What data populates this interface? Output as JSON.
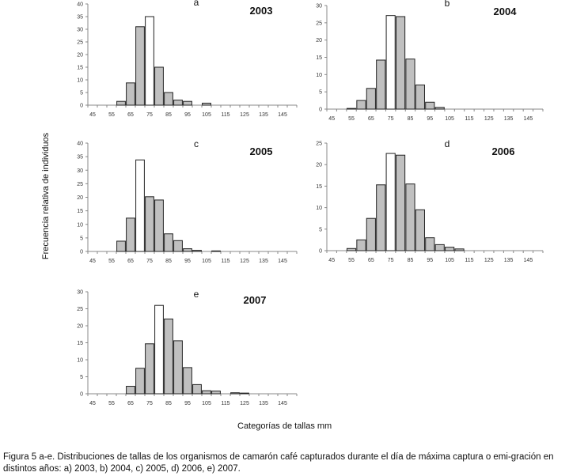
{
  "y_axis_label": "Frecuencia relativa de individuos",
  "x_axis_label": "Categorías de tallas mm",
  "caption": "Figura 5 a-e. Distribuciones de tallas de los organismos de camarón café capturados durante el día de máxima captura o emi-gración en distintos años: a) 2003, b) 2004, c) 2005, d) 2006, e) 2007.",
  "colors": {
    "bar_fill": "#c0c0c0",
    "highlight_fill": "#ffffff",
    "bar_stroke": "#222222",
    "axis": "#888888"
  },
  "chart_data": [
    {
      "type": "bar",
      "panel": "a",
      "title": "2003",
      "categories": [
        "45",
        "50",
        "55",
        "60",
        "65",
        "70",
        "75",
        "80",
        "85",
        "90",
        "95",
        "100",
        "105",
        "110",
        "115",
        "120",
        "125",
        "130",
        "135",
        "140",
        "145",
        "150"
      ],
      "tick_labels": [
        "45",
        "55",
        "65",
        "75",
        "85",
        "95",
        "105",
        "115",
        "125",
        "135",
        "145"
      ],
      "values": [
        0,
        0,
        0,
        1.5,
        8.8,
        31,
        35,
        15,
        5,
        2,
        1.5,
        0,
        0.8,
        0,
        0,
        0,
        0,
        0,
        0,
        0,
        0,
        0
      ],
      "highlight_index": 6,
      "ylim": [
        0,
        40
      ],
      "yticks": [
        0,
        5,
        10,
        15,
        20,
        25,
        30,
        35,
        40
      ]
    },
    {
      "type": "bar",
      "panel": "b",
      "title": "2004",
      "categories": [
        "45",
        "50",
        "55",
        "60",
        "65",
        "70",
        "75",
        "80",
        "85",
        "90",
        "95",
        "100",
        "105",
        "110",
        "115",
        "120",
        "125",
        "130",
        "135",
        "140",
        "145",
        "150"
      ],
      "tick_labels": [
        "45",
        "55",
        "65",
        "75",
        "85",
        "95",
        "105",
        "115",
        "125",
        "135",
        "145"
      ],
      "values": [
        0,
        0,
        0.2,
        2.5,
        6,
        14.2,
        27.1,
        26.8,
        14.5,
        7,
        2,
        0.5,
        0,
        0,
        0,
        0,
        0,
        0,
        0,
        0,
        0,
        0
      ],
      "highlight_index": 6,
      "ylim": [
        0,
        30
      ],
      "yticks": [
        0,
        5,
        10,
        15,
        20,
        25,
        30
      ]
    },
    {
      "type": "bar",
      "panel": "c",
      "title": "2005",
      "categories": [
        "45",
        "50",
        "55",
        "60",
        "65",
        "70",
        "75",
        "80",
        "85",
        "90",
        "95",
        "100",
        "105",
        "110",
        "115",
        "120",
        "125",
        "130",
        "135",
        "140",
        "145",
        "150"
      ],
      "tick_labels": [
        "45",
        "55",
        "65",
        "75",
        "85",
        "95",
        "105",
        "115",
        "125",
        "135",
        "145"
      ],
      "values": [
        0,
        0,
        0,
        3.8,
        12.3,
        33.8,
        20.2,
        19,
        6.5,
        4,
        1,
        0.4,
        0,
        0.2,
        0,
        0,
        0,
        0,
        0,
        0,
        0,
        0
      ],
      "highlight_index": 5,
      "ylim": [
        0,
        40
      ],
      "yticks": [
        0,
        5,
        10,
        15,
        20,
        25,
        30,
        35,
        40
      ]
    },
    {
      "type": "bar",
      "panel": "d",
      "title": "2006",
      "categories": [
        "45",
        "50",
        "55",
        "60",
        "65",
        "70",
        "75",
        "80",
        "85",
        "90",
        "95",
        "100",
        "105",
        "110",
        "115",
        "120",
        "125",
        "130",
        "135",
        "140",
        "145",
        "150"
      ],
      "tick_labels": [
        "45",
        "55",
        "65",
        "75",
        "85",
        "95",
        "105",
        "115",
        "125",
        "135",
        "145"
      ],
      "values": [
        0,
        0,
        0.5,
        2.5,
        7.5,
        15.3,
        22.6,
        22.2,
        15.5,
        9.5,
        3,
        1.4,
        0.8,
        0.4,
        0,
        0,
        0,
        0,
        0,
        0,
        0,
        0
      ],
      "highlight_index": 6,
      "ylim": [
        0,
        25
      ],
      "yticks": [
        0,
        5,
        10,
        15,
        20,
        25
      ]
    },
    {
      "type": "bar",
      "panel": "e",
      "title": "2007",
      "categories": [
        "45",
        "50",
        "55",
        "60",
        "65",
        "70",
        "75",
        "80",
        "85",
        "90",
        "95",
        "100",
        "105",
        "110",
        "115",
        "120",
        "125",
        "130",
        "135",
        "140",
        "145",
        "150"
      ],
      "tick_labels": [
        "45",
        "55",
        "65",
        "75",
        "85",
        "95",
        "105",
        "115",
        "125",
        "135",
        "145"
      ],
      "values": [
        0,
        0,
        0,
        0,
        2.2,
        7.5,
        14.7,
        26,
        22,
        15.6,
        7.7,
        2.7,
        0.9,
        0.8,
        0,
        0.3,
        0.2,
        0,
        0,
        0,
        0,
        0
      ],
      "highlight_index": 7,
      "ylim": [
        0,
        30
      ],
      "yticks": [
        0,
        5,
        10,
        15,
        20,
        25,
        30
      ]
    }
  ]
}
